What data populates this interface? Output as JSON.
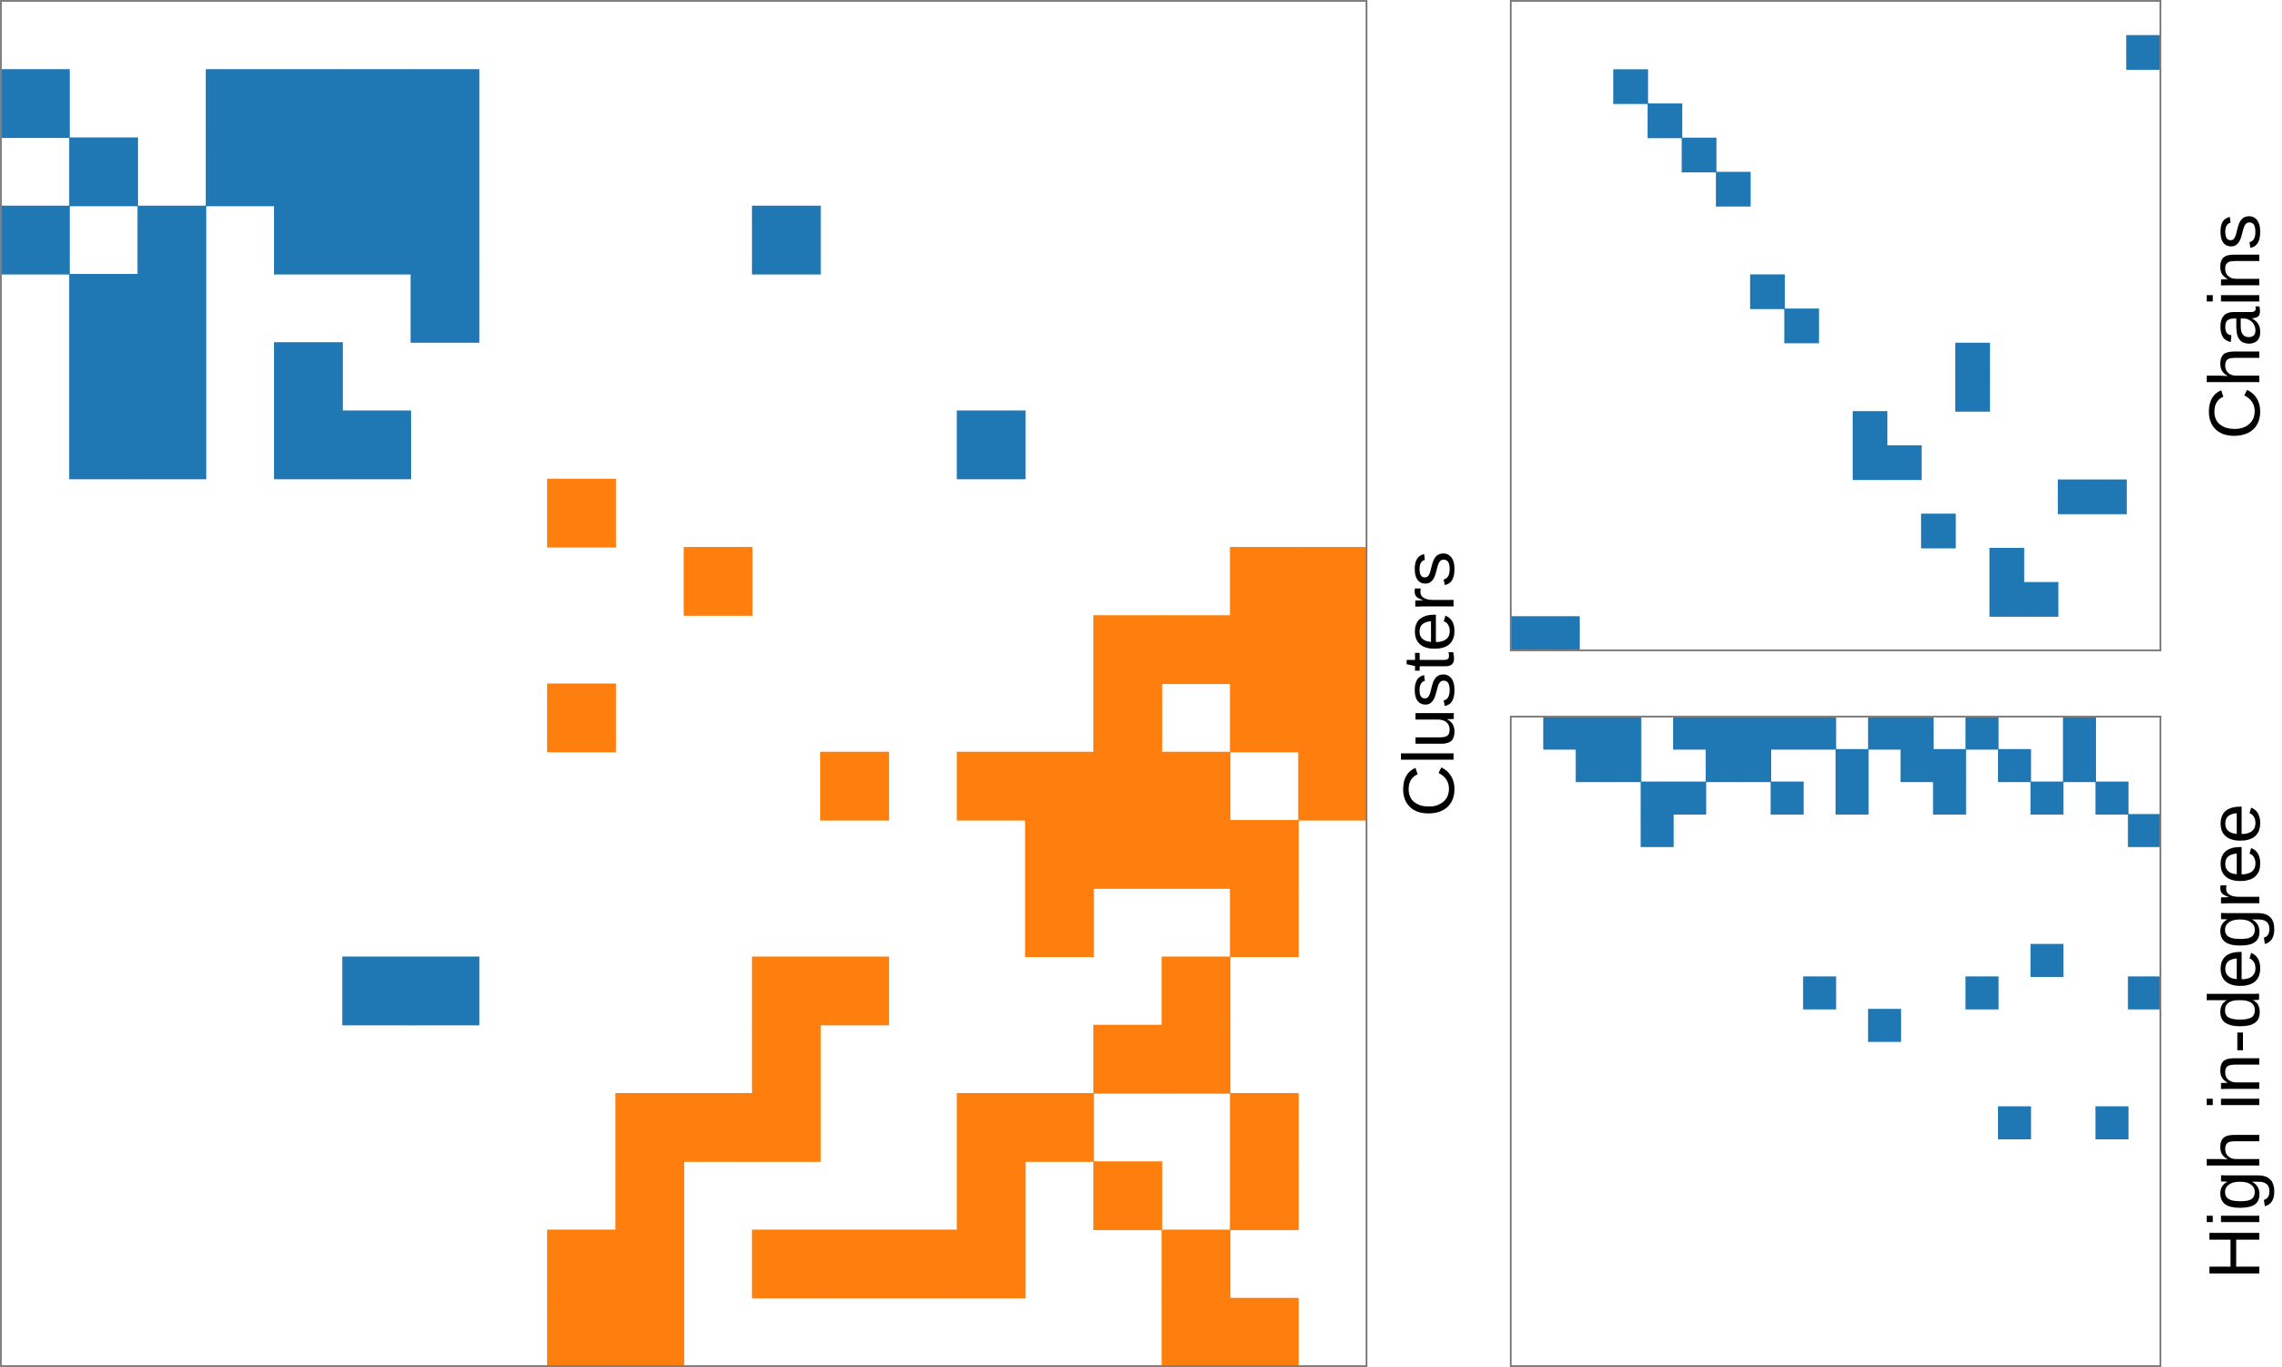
{
  "colors": {
    "blue": "#1f77b4",
    "orange": "#ff7f0e"
  },
  "chart_data": [
    {
      "type": "heatmap",
      "title": "Clusters",
      "rows": 20,
      "cols": 20,
      "cells": [
        {
          "r": 1,
          "c": 0,
          "g": "blue"
        },
        {
          "r": 1,
          "c": 3,
          "g": "blue"
        },
        {
          "r": 1,
          "c": 4,
          "g": "blue"
        },
        {
          "r": 1,
          "c": 5,
          "g": "blue"
        },
        {
          "r": 1,
          "c": 6,
          "g": "blue"
        },
        {
          "r": 2,
          "c": 1,
          "g": "blue"
        },
        {
          "r": 2,
          "c": 3,
          "g": "blue"
        },
        {
          "r": 2,
          "c": 4,
          "g": "blue"
        },
        {
          "r": 2,
          "c": 5,
          "g": "blue"
        },
        {
          "r": 2,
          "c": 6,
          "g": "blue"
        },
        {
          "r": 3,
          "c": 0,
          "g": "blue"
        },
        {
          "r": 3,
          "c": 2,
          "g": "blue"
        },
        {
          "r": 3,
          "c": 4,
          "g": "blue"
        },
        {
          "r": 3,
          "c": 5,
          "g": "blue"
        },
        {
          "r": 3,
          "c": 6,
          "g": "blue"
        },
        {
          "r": 3,
          "c": 11,
          "g": "blue"
        },
        {
          "r": 4,
          "c": 1,
          "g": "blue"
        },
        {
          "r": 4,
          "c": 2,
          "g": "blue"
        },
        {
          "r": 4,
          "c": 6,
          "g": "blue"
        },
        {
          "r": 5,
          "c": 1,
          "g": "blue"
        },
        {
          "r": 5,
          "c": 2,
          "g": "blue"
        },
        {
          "r": 5,
          "c": 4,
          "g": "blue"
        },
        {
          "r": 6,
          "c": 1,
          "g": "blue"
        },
        {
          "r": 6,
          "c": 2,
          "g": "blue"
        },
        {
          "r": 6,
          "c": 4,
          "g": "blue"
        },
        {
          "r": 6,
          "c": 5,
          "g": "blue"
        },
        {
          "r": 6,
          "c": 14,
          "g": "blue"
        },
        {
          "r": 7,
          "c": 8,
          "g": "orange"
        },
        {
          "r": 8,
          "c": 10,
          "g": "orange"
        },
        {
          "r": 8,
          "c": 18,
          "g": "orange"
        },
        {
          "r": 8,
          "c": 19,
          "g": "orange"
        },
        {
          "r": 9,
          "c": 16,
          "g": "orange"
        },
        {
          "r": 9,
          "c": 17,
          "g": "orange"
        },
        {
          "r": 9,
          "c": 18,
          "g": "orange"
        },
        {
          "r": 9,
          "c": 19,
          "g": "orange"
        },
        {
          "r": 10,
          "c": 8,
          "g": "orange"
        },
        {
          "r": 10,
          "c": 16,
          "g": "orange"
        },
        {
          "r": 10,
          "c": 18,
          "g": "orange"
        },
        {
          "r": 10,
          "c": 19,
          "g": "orange"
        },
        {
          "r": 11,
          "c": 12,
          "g": "orange"
        },
        {
          "r": 11,
          "c": 14,
          "g": "orange"
        },
        {
          "r": 11,
          "c": 15,
          "g": "orange"
        },
        {
          "r": 11,
          "c": 16,
          "g": "orange"
        },
        {
          "r": 11,
          "c": 17,
          "g": "orange"
        },
        {
          "r": 11,
          "c": 19,
          "g": "orange"
        },
        {
          "r": 12,
          "c": 15,
          "g": "orange"
        },
        {
          "r": 12,
          "c": 16,
          "g": "orange"
        },
        {
          "r": 12,
          "c": 17,
          "g": "orange"
        },
        {
          "r": 12,
          "c": 18,
          "g": "orange"
        },
        {
          "r": 13,
          "c": 15,
          "g": "orange"
        },
        {
          "r": 13,
          "c": 18,
          "g": "orange"
        },
        {
          "r": 14,
          "c": 5,
          "g": "blue"
        },
        {
          "r": 14,
          "c": 6,
          "g": "blue"
        },
        {
          "r": 14,
          "c": 11,
          "g": "orange"
        },
        {
          "r": 14,
          "c": 12,
          "g": "orange"
        },
        {
          "r": 14,
          "c": 17,
          "g": "orange"
        },
        {
          "r": 15,
          "c": 11,
          "g": "orange"
        },
        {
          "r": 15,
          "c": 16,
          "g": "orange"
        },
        {
          "r": 15,
          "c": 17,
          "g": "orange"
        },
        {
          "r": 16,
          "c": 9,
          "g": "orange"
        },
        {
          "r": 16,
          "c": 10,
          "g": "orange"
        },
        {
          "r": 16,
          "c": 11,
          "g": "orange"
        },
        {
          "r": 16,
          "c": 14,
          "g": "orange"
        },
        {
          "r": 16,
          "c": 15,
          "g": "orange"
        },
        {
          "r": 16,
          "c": 18,
          "g": "orange"
        },
        {
          "r": 17,
          "c": 9,
          "g": "orange"
        },
        {
          "r": 17,
          "c": 14,
          "g": "orange"
        },
        {
          "r": 17,
          "c": 16,
          "g": "orange"
        },
        {
          "r": 17,
          "c": 18,
          "g": "orange"
        },
        {
          "r": 18,
          "c": 8,
          "g": "orange"
        },
        {
          "r": 18,
          "c": 9,
          "g": "orange"
        },
        {
          "r": 18,
          "c": 11,
          "g": "orange"
        },
        {
          "r": 18,
          "c": 12,
          "g": "orange"
        },
        {
          "r": 18,
          "c": 13,
          "g": "orange"
        },
        {
          "r": 18,
          "c": 14,
          "g": "orange"
        },
        {
          "r": 18,
          "c": 17,
          "g": "orange"
        },
        {
          "r": 19,
          "c": 8,
          "g": "orange"
        },
        {
          "r": 19,
          "c": 9,
          "g": "orange"
        },
        {
          "r": 19,
          "c": 17,
          "g": "orange"
        },
        {
          "r": 19,
          "c": 18,
          "g": "orange"
        }
      ]
    },
    {
      "type": "heatmap",
      "title": "Chains",
      "rows": 19,
      "cols": 19,
      "cells": [
        {
          "r": 1,
          "c": 18,
          "g": "blue"
        },
        {
          "r": 2,
          "c": 3,
          "g": "blue"
        },
        {
          "r": 3,
          "c": 4,
          "g": "blue"
        },
        {
          "r": 4,
          "c": 5,
          "g": "blue"
        },
        {
          "r": 5,
          "c": 6,
          "g": "blue"
        },
        {
          "r": 8,
          "c": 7,
          "g": "blue"
        },
        {
          "r": 9,
          "c": 8,
          "g": "blue"
        },
        {
          "r": 10,
          "c": 13,
          "g": "blue"
        },
        {
          "r": 11,
          "c": 13,
          "g": "blue"
        },
        {
          "r": 12,
          "c": 10,
          "g": "blue"
        },
        {
          "r": 13,
          "c": 10,
          "g": "blue"
        },
        {
          "r": 13,
          "c": 11,
          "g": "blue"
        },
        {
          "r": 14,
          "c": 16,
          "g": "blue"
        },
        {
          "r": 14,
          "c": 17,
          "g": "blue"
        },
        {
          "r": 15,
          "c": 12,
          "g": "blue"
        },
        {
          "r": 16,
          "c": 14,
          "g": "blue"
        },
        {
          "r": 17,
          "c": 14,
          "g": "blue"
        },
        {
          "r": 17,
          "c": 15,
          "g": "blue"
        },
        {
          "r": 18,
          "c": 0,
          "g": "blue"
        },
        {
          "r": 18,
          "c": 1,
          "g": "blue"
        }
      ]
    },
    {
      "type": "heatmap",
      "title": "High in-degree",
      "rows": 20,
      "cols": 20,
      "cells": [
        {
          "r": 0,
          "c": 1,
          "g": "blue"
        },
        {
          "r": 0,
          "c": 2,
          "g": "blue"
        },
        {
          "r": 0,
          "c": 3,
          "g": "blue"
        },
        {
          "r": 0,
          "c": 5,
          "g": "blue"
        },
        {
          "r": 0,
          "c": 6,
          "g": "blue"
        },
        {
          "r": 0,
          "c": 7,
          "g": "blue"
        },
        {
          "r": 0,
          "c": 8,
          "g": "blue"
        },
        {
          "r": 0,
          "c": 9,
          "g": "blue"
        },
        {
          "r": 0,
          "c": 11,
          "g": "blue"
        },
        {
          "r": 0,
          "c": 12,
          "g": "blue"
        },
        {
          "r": 0,
          "c": 14,
          "g": "blue"
        },
        {
          "r": 0,
          "c": 17,
          "g": "blue"
        },
        {
          "r": 1,
          "c": 2,
          "g": "blue"
        },
        {
          "r": 1,
          "c": 3,
          "g": "blue"
        },
        {
          "r": 1,
          "c": 6,
          "g": "blue"
        },
        {
          "r": 1,
          "c": 7,
          "g": "blue"
        },
        {
          "r": 1,
          "c": 10,
          "g": "blue"
        },
        {
          "r": 1,
          "c": 12,
          "g": "blue"
        },
        {
          "r": 1,
          "c": 13,
          "g": "blue"
        },
        {
          "r": 1,
          "c": 15,
          "g": "blue"
        },
        {
          "r": 1,
          "c": 17,
          "g": "blue"
        },
        {
          "r": 2,
          "c": 4,
          "g": "blue"
        },
        {
          "r": 2,
          "c": 5,
          "g": "blue"
        },
        {
          "r": 2,
          "c": 8,
          "g": "blue"
        },
        {
          "r": 2,
          "c": 10,
          "g": "blue"
        },
        {
          "r": 2,
          "c": 13,
          "g": "blue"
        },
        {
          "r": 2,
          "c": 16,
          "g": "blue"
        },
        {
          "r": 2,
          "c": 18,
          "g": "blue"
        },
        {
          "r": 3,
          "c": 4,
          "g": "blue"
        },
        {
          "r": 3,
          "c": 19,
          "g": "blue"
        },
        {
          "r": 7,
          "c": 16,
          "g": "blue"
        },
        {
          "r": 8,
          "c": 9,
          "g": "blue"
        },
        {
          "r": 8,
          "c": 14,
          "g": "blue"
        },
        {
          "r": 8,
          "c": 19,
          "g": "blue"
        },
        {
          "r": 9,
          "c": 11,
          "g": "blue"
        },
        {
          "r": 12,
          "c": 15,
          "g": "blue"
        },
        {
          "r": 12,
          "c": 18,
          "g": "blue"
        }
      ]
    }
  ]
}
